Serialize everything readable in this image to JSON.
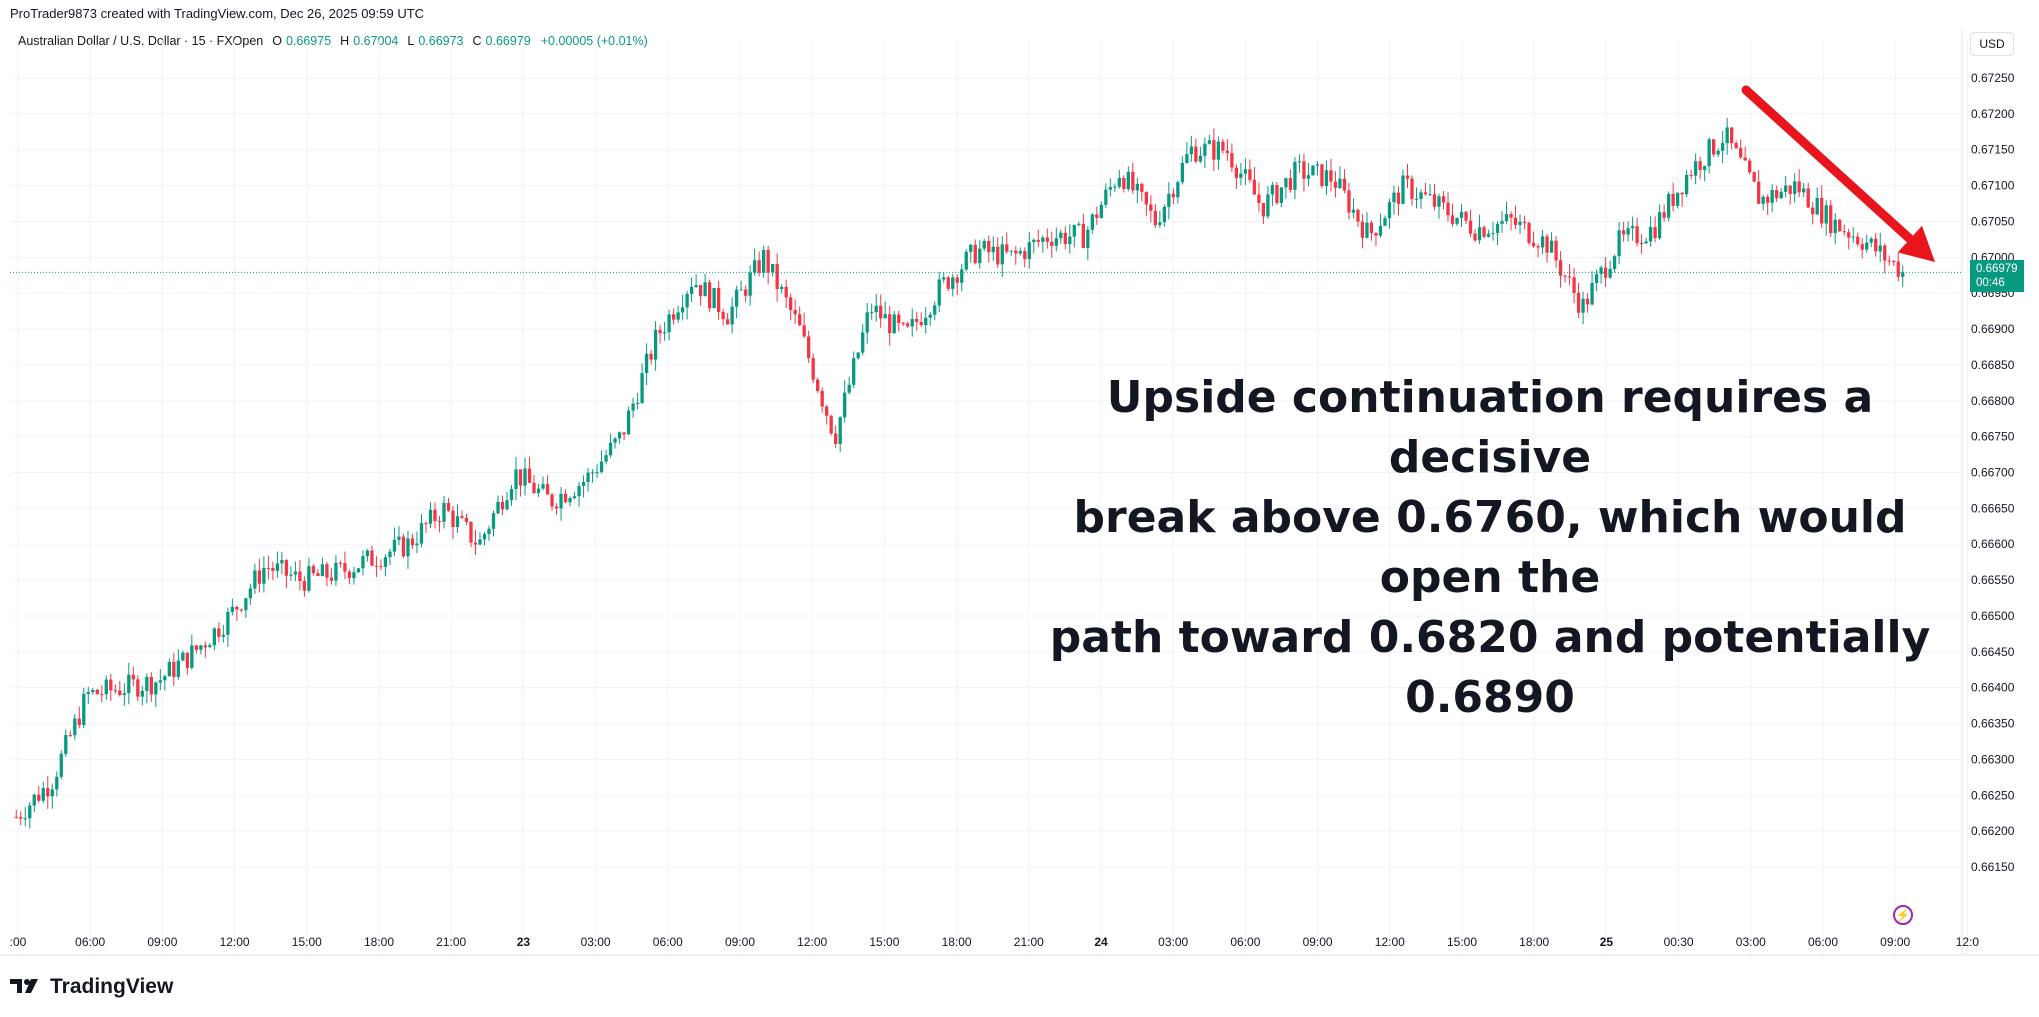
{
  "header": {
    "created_by": "ProTrader9873 created with TradingView.com, Dec 26, 2025 09:59 UTC"
  },
  "legend": {
    "symbol": "Australian Dollar / U.S. Dollar · 15 · FXOpen",
    "open_label": "O",
    "open": "0.66975",
    "high_label": "H",
    "high": "0.67004",
    "low_label": "L",
    "low": "0.66973",
    "close_label": "C",
    "close": "0.66979",
    "change": "+0.00005 (+0.01%)"
  },
  "price_axis": {
    "currency": "USD",
    "last_price": "0.66979",
    "countdown": "00:46"
  },
  "annotation": {
    "line1": "Upside continuation requires a decisive",
    "line2": "break above 0.6760, which would open the",
    "line3": "path toward 0.6820 and potentially 0.6890"
  },
  "brand": {
    "name": "TradingView"
  },
  "colors": {
    "up": "#089981",
    "down": "#f23645",
    "arrow": "#e8161c",
    "grid": "#f0f3fa"
  },
  "chart_data": {
    "type": "candlestick",
    "interval": "15",
    "ylim": [
      0.6613,
      0.6726
    ],
    "y_ticks": [
      "0.66150",
      "0.66200",
      "0.66250",
      "0.66300",
      "0.66350",
      "0.66400",
      "0.66450",
      "0.66500",
      "0.66550",
      "0.66600",
      "0.66650",
      "0.66700",
      "0.66750",
      "0.66800",
      "0.66850",
      "0.66900",
      "0.66950",
      "0.67000",
      "0.67050",
      "0.67100",
      "0.67150",
      "0.67200",
      "0.67250"
    ],
    "x_ticks": [
      {
        "label": ":00",
        "bold": false
      },
      {
        "label": "06:00",
        "bold": false
      },
      {
        "label": "09:00",
        "bold": false
      },
      {
        "label": "12:00",
        "bold": false
      },
      {
        "label": "15:00",
        "bold": false
      },
      {
        "label": "18:00",
        "bold": false
      },
      {
        "label": "21:00",
        "bold": false
      },
      {
        "label": "23",
        "bold": true
      },
      {
        "label": "03:00",
        "bold": false
      },
      {
        "label": "06:00",
        "bold": false
      },
      {
        "label": "09:00",
        "bold": false
      },
      {
        "label": "12:00",
        "bold": false
      },
      {
        "label": "15:00",
        "bold": false
      },
      {
        "label": "18:00",
        "bold": false
      },
      {
        "label": "21:00",
        "bold": false
      },
      {
        "label": "24",
        "bold": true
      },
      {
        "label": "03:00",
        "bold": false
      },
      {
        "label": "06:00",
        "bold": false
      },
      {
        "label": "09:00",
        "bold": false
      },
      {
        "label": "12:00",
        "bold": false
      },
      {
        "label": "15:00",
        "bold": false
      },
      {
        "label": "18:00",
        "bold": false
      },
      {
        "label": "25",
        "bold": true
      },
      {
        "label": "00:30",
        "bold": false
      },
      {
        "label": "03:00",
        "bold": false
      },
      {
        "label": "06:00",
        "bold": false
      },
      {
        "label": "09:00",
        "bold": false
      },
      {
        "label": "12:0",
        "bold": false
      }
    ],
    "anchors": [
      0.6622,
      0.6627,
      0.6639,
      0.664,
      0.6641,
      0.6645,
      0.665,
      0.6657,
      0.6655,
      0.6656,
      0.6658,
      0.666,
      0.6665,
      0.666,
      0.667,
      0.6666,
      0.6669,
      0.6675,
      0.6689,
      0.6697,
      0.6692,
      0.67,
      0.669,
      0.6675,
      0.6693,
      0.6689,
      0.6696,
      0.6701,
      0.67,
      0.6703,
      0.6703,
      0.6712,
      0.6705,
      0.6715,
      0.6715,
      0.6707,
      0.6712,
      0.6711,
      0.6703,
      0.671,
      0.6707,
      0.6704,
      0.6705,
      0.6702,
      0.6693,
      0.6702,
      0.6704,
      0.6712,
      0.6717,
      0.6708,
      0.671,
      0.6705,
      0.6702,
      0.6698
    ],
    "last": 0.66979,
    "arrow": {
      "from": [
        0.672,
        0.6724
      ],
      "to": [
        0.67,
        0.6698
      ]
    }
  }
}
